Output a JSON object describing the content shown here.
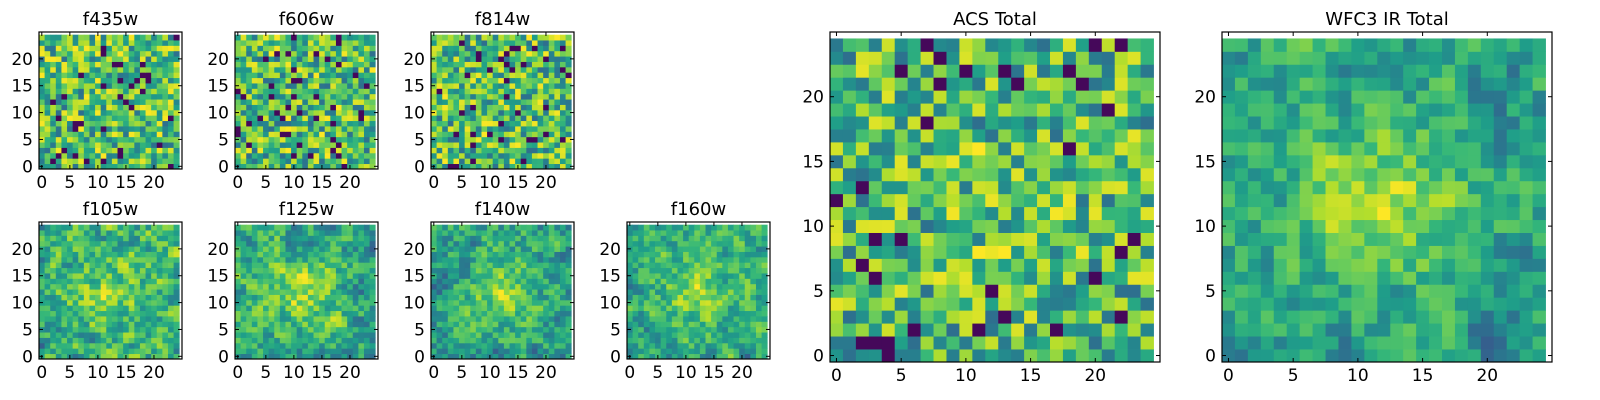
{
  "chart_data": [
    {
      "type": "heatmap",
      "id": "f435w",
      "title": "f435w",
      "grid_size": 25,
      "xticks": [
        0,
        5,
        10,
        15,
        20
      ],
      "yticks": [
        0,
        5,
        10,
        15,
        20
      ],
      "colormap": "viridis",
      "seed": 11,
      "smooth": 0,
      "blob": 0
    },
    {
      "type": "heatmap",
      "id": "f606w",
      "title": "f606w",
      "grid_size": 25,
      "xticks": [
        0,
        5,
        10,
        15,
        20
      ],
      "yticks": [
        0,
        5,
        10,
        15,
        20
      ],
      "colormap": "viridis",
      "seed": 23,
      "smooth": 0,
      "blob": 0
    },
    {
      "type": "heatmap",
      "id": "f814w",
      "title": "f814w",
      "grid_size": 25,
      "xticks": [
        0,
        5,
        10,
        15,
        20
      ],
      "yticks": [
        0,
        5,
        10,
        15,
        20
      ],
      "colormap": "viridis",
      "seed": 37,
      "smooth": 0,
      "blob": 0
    },
    {
      "type": "heatmap",
      "id": "f105w",
      "title": "f105w",
      "grid_size": 25,
      "xticks": [
        0,
        5,
        10,
        15,
        20
      ],
      "yticks": [
        0,
        5,
        10,
        15,
        20
      ],
      "colormap": "viridis",
      "seed": 41,
      "smooth": 1,
      "blob": 0.25
    },
    {
      "type": "heatmap",
      "id": "f125w",
      "title": "f125w",
      "grid_size": 25,
      "xticks": [
        0,
        5,
        10,
        15,
        20
      ],
      "yticks": [
        0,
        5,
        10,
        15,
        20
      ],
      "colormap": "viridis",
      "seed": 53,
      "smooth": 1,
      "blob": 0.3
    },
    {
      "type": "heatmap",
      "id": "f140w",
      "title": "f140w",
      "grid_size": 25,
      "xticks": [
        0,
        5,
        10,
        15,
        20
      ],
      "yticks": [
        0,
        5,
        10,
        15,
        20
      ],
      "colormap": "viridis",
      "seed": 67,
      "smooth": 1,
      "blob": 0.35
    },
    {
      "type": "heatmap",
      "id": "f160w",
      "title": "f160w",
      "grid_size": 25,
      "xticks": [
        0,
        5,
        10,
        15,
        20
      ],
      "yticks": [
        0,
        5,
        10,
        15,
        20
      ],
      "colormap": "viridis",
      "seed": 79,
      "smooth": 1,
      "blob": 0.35
    },
    {
      "type": "heatmap",
      "id": "acs_total",
      "title": "ACS Total",
      "grid_size": 25,
      "xticks": [
        0,
        5,
        10,
        15,
        20
      ],
      "yticks": [
        0,
        5,
        10,
        15,
        20
      ],
      "colormap": "viridis",
      "seed": 97,
      "smooth": 0,
      "blob": 0.1
    },
    {
      "type": "heatmap",
      "id": "wfc3_ir_total",
      "title": "WFC3 IR Total",
      "grid_size": 25,
      "xticks": [
        0,
        5,
        10,
        15,
        20
      ],
      "yticks": [
        0,
        5,
        10,
        15,
        20
      ],
      "colormap": "viridis",
      "seed": 131,
      "smooth": 1,
      "blob": 0.5
    }
  ]
}
